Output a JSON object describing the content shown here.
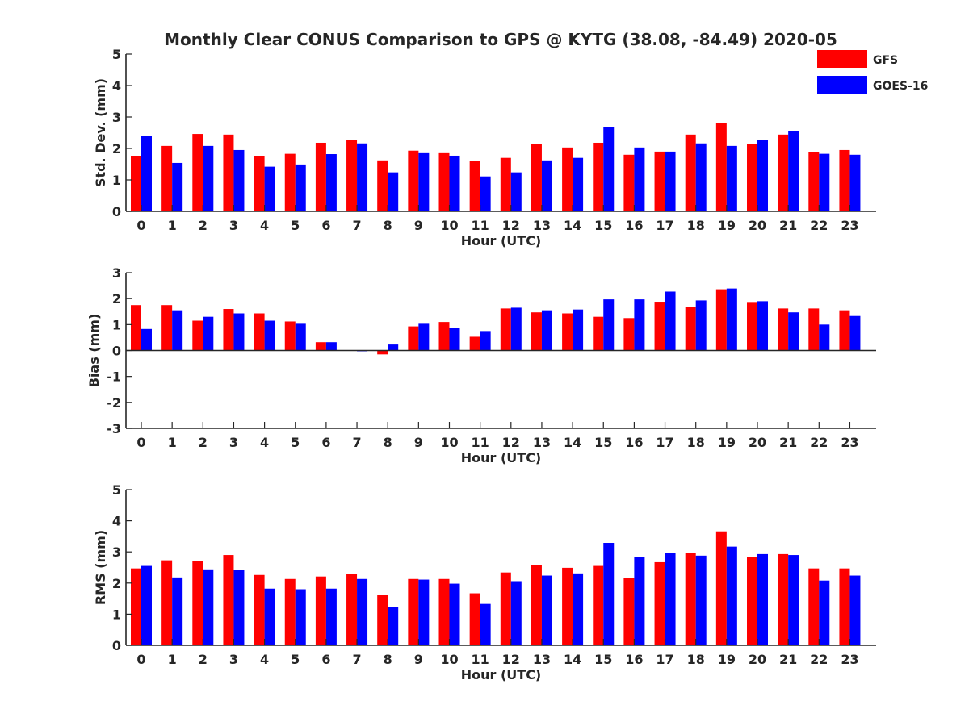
{
  "title": "Monthly Clear CONUS Comparison to GPS @ KYTG (38.08, -84.49) 2020-05",
  "legend": {
    "placement": "top-right",
    "items": [
      {
        "label": "GFS",
        "color": "#ff0000"
      },
      {
        "label": "GOES-16",
        "color": "#0000ff"
      }
    ]
  },
  "chart_data": [
    {
      "type": "bar",
      "xlabel": "Hour (UTC)",
      "ylabel": "Std. Dev. (mm)",
      "ylim": [
        0,
        5
      ],
      "yticks": [
        0,
        1,
        2,
        3,
        4,
        5
      ],
      "categories": [
        "0",
        "1",
        "2",
        "3",
        "4",
        "5",
        "6",
        "7",
        "8",
        "9",
        "10",
        "11",
        "12",
        "13",
        "14",
        "15",
        "16",
        "17",
        "18",
        "19",
        "20",
        "21",
        "22",
        "23"
      ],
      "series": [
        {
          "name": "GFS",
          "color": "#ff0000",
          "values": [
            1.75,
            2.08,
            2.46,
            2.44,
            1.75,
            1.83,
            2.18,
            2.28,
            1.62,
            1.93,
            1.85,
            1.6,
            1.7,
            2.13,
            2.03,
            2.18,
            1.8,
            1.9,
            2.44,
            2.8,
            2.13,
            2.44,
            1.88,
            1.95
          ]
        },
        {
          "name": "GOES-16",
          "color": "#0000ff",
          "values": [
            2.41,
            1.54,
            2.08,
            1.95,
            1.42,
            1.49,
            1.82,
            2.16,
            1.24,
            1.85,
            1.77,
            1.11,
            1.24,
            1.62,
            1.7,
            2.67,
            2.03,
            1.9,
            2.16,
            2.08,
            2.26,
            2.54,
            1.83,
            1.8
          ]
        }
      ]
    },
    {
      "type": "bar",
      "xlabel": "Hour (UTC)",
      "ylabel": "Bias (mm)",
      "ylim": [
        -3,
        3
      ],
      "yticks": [
        -3,
        -2,
        -1,
        0,
        1,
        2,
        3
      ],
      "categories": [
        "0",
        "1",
        "2",
        "3",
        "4",
        "5",
        "6",
        "7",
        "8",
        "9",
        "10",
        "11",
        "12",
        "13",
        "14",
        "15",
        "16",
        "17",
        "18",
        "19",
        "20",
        "21",
        "22",
        "23"
      ],
      "series": [
        {
          "name": "GFS",
          "color": "#ff0000",
          "values": [
            1.75,
            1.75,
            1.15,
            1.6,
            1.43,
            1.12,
            0.32,
            0.0,
            -0.15,
            0.93,
            1.1,
            0.53,
            1.62,
            1.47,
            1.43,
            1.3,
            1.25,
            1.88,
            1.68,
            2.36,
            1.87,
            1.62,
            1.62,
            1.55
          ]
        },
        {
          "name": "GOES-16",
          "color": "#0000ff",
          "values": [
            0.83,
            1.55,
            1.3,
            1.43,
            1.15,
            1.03,
            0.32,
            -0.03,
            0.23,
            1.03,
            0.88,
            0.75,
            1.65,
            1.55,
            1.58,
            1.97,
            1.97,
            2.27,
            1.93,
            2.39,
            1.9,
            1.47,
            1.0,
            1.33
          ]
        }
      ]
    },
    {
      "type": "bar",
      "xlabel": "Hour (UTC)",
      "ylabel": "RMS (mm)",
      "ylim": [
        0,
        5
      ],
      "yticks": [
        0,
        1,
        2,
        3,
        4,
        5
      ],
      "categories": [
        "0",
        "1",
        "2",
        "3",
        "4",
        "5",
        "6",
        "7",
        "8",
        "9",
        "10",
        "11",
        "12",
        "13",
        "14",
        "15",
        "16",
        "17",
        "18",
        "19",
        "20",
        "21",
        "22",
        "23"
      ],
      "series": [
        {
          "name": "GFS",
          "color": "#ff0000",
          "values": [
            2.47,
            2.73,
            2.7,
            2.9,
            2.26,
            2.13,
            2.21,
            2.29,
            1.62,
            2.13,
            2.13,
            1.67,
            2.34,
            2.57,
            2.49,
            2.55,
            2.16,
            2.67,
            2.96,
            3.66,
            2.83,
            2.93,
            2.47,
            2.47
          ]
        },
        {
          "name": "GOES-16",
          "color": "#0000ff",
          "values": [
            2.55,
            2.18,
            2.44,
            2.42,
            1.82,
            1.8,
            1.82,
            2.13,
            1.23,
            2.11,
            1.98,
            1.33,
            2.06,
            2.24,
            2.31,
            3.29,
            2.83,
            2.96,
            2.88,
            3.17,
            2.93,
            2.9,
            2.08,
            2.24
          ]
        }
      ]
    }
  ]
}
